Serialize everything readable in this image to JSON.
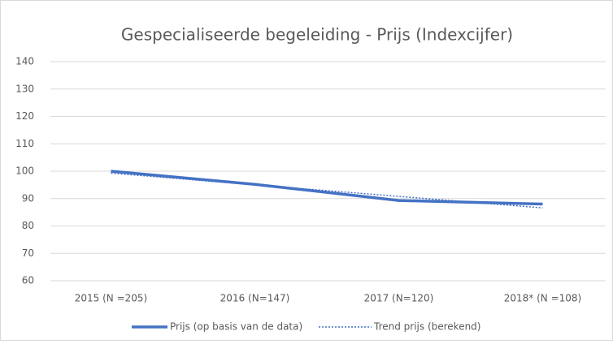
{
  "chart_data": {
    "type": "line",
    "title": "Gespecialiseerde begeleiding - Prijs (Indexcijfer)",
    "categories": [
      "2015 (N =205)",
      "2016 (N=147)",
      "2017 (N=120)",
      "2018* (N =108)"
    ],
    "series": [
      {
        "name": "Prijs (op basis van de data)",
        "color": "#4472c4",
        "style": "solid",
        "values": [
          100,
          95.2,
          89.3,
          88
        ]
      },
      {
        "name": "Trend prijs (berekend)",
        "color": "#4472c4",
        "style": "dotted",
        "values": [
          99.3,
          95.0,
          90.8,
          86.6
        ]
      }
    ],
    "ylim": [
      60,
      140
    ],
    "yticks": [
      60,
      70,
      80,
      90,
      100,
      110,
      120,
      130,
      140
    ],
    "grid": true,
    "legend": "bottom"
  }
}
